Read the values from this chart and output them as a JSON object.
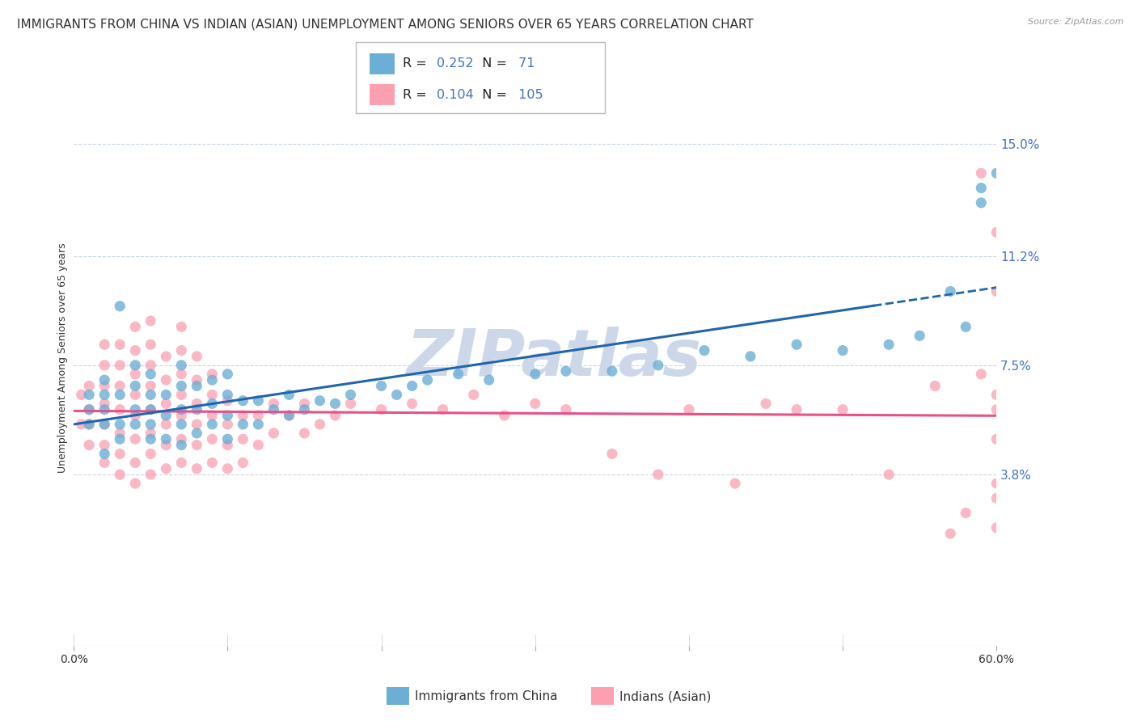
{
  "title": "IMMIGRANTS FROM CHINA VS INDIAN (ASIAN) UNEMPLOYMENT AMONG SENIORS OVER 65 YEARS CORRELATION CHART",
  "source": "Source: ZipAtlas.com",
  "ylabel": "Unemployment Among Seniors over 65 years",
  "xlim": [
    0.0,
    0.6
  ],
  "ylim": [
    -0.02,
    0.175
  ],
  "yticks": [
    0.038,
    0.075,
    0.112,
    0.15
  ],
  "ytick_labels": [
    "3.8%",
    "7.5%",
    "11.2%",
    "15.0%"
  ],
  "xticks": [
    0.0,
    0.6
  ],
  "xtick_labels": [
    "0.0%",
    "60.0%"
  ],
  "china_R": 0.252,
  "china_N": 71,
  "india_R": 0.104,
  "india_N": 105,
  "china_color": "#6baed6",
  "india_color": "#fc9fb0",
  "china_line_color": "#2166ac",
  "india_line_color": "#e8508a",
  "watermark": "ZIPatlas",
  "watermark_color": "#ccd8ea",
  "background_color": "#ffffff",
  "grid_color": "#c8d4e8",
  "legend_entry1": "Immigrants from China",
  "legend_entry2": "Indians (Asian)",
  "title_fontsize": 11,
  "axis_label_fontsize": 9,
  "tick_fontsize": 10,
  "china_scatter_x": [
    0.01,
    0.01,
    0.01,
    0.02,
    0.02,
    0.02,
    0.02,
    0.02,
    0.03,
    0.03,
    0.03,
    0.03,
    0.04,
    0.04,
    0.04,
    0.04,
    0.05,
    0.05,
    0.05,
    0.05,
    0.05,
    0.06,
    0.06,
    0.06,
    0.07,
    0.07,
    0.07,
    0.07,
    0.07,
    0.08,
    0.08,
    0.08,
    0.09,
    0.09,
    0.09,
    0.1,
    0.1,
    0.1,
    0.1,
    0.11,
    0.11,
    0.12,
    0.12,
    0.13,
    0.14,
    0.14,
    0.15,
    0.16,
    0.17,
    0.18,
    0.2,
    0.21,
    0.22,
    0.23,
    0.25,
    0.27,
    0.3,
    0.32,
    0.35,
    0.38,
    0.41,
    0.44,
    0.47,
    0.5,
    0.53,
    0.55,
    0.57,
    0.58,
    0.59,
    0.59,
    0.6
  ],
  "china_scatter_y": [
    0.055,
    0.06,
    0.065,
    0.045,
    0.055,
    0.06,
    0.065,
    0.07,
    0.05,
    0.055,
    0.065,
    0.095,
    0.055,
    0.06,
    0.068,
    0.075,
    0.05,
    0.055,
    0.06,
    0.065,
    0.072,
    0.05,
    0.058,
    0.065,
    0.048,
    0.055,
    0.06,
    0.068,
    0.075,
    0.052,
    0.06,
    0.068,
    0.055,
    0.062,
    0.07,
    0.05,
    0.058,
    0.065,
    0.072,
    0.055,
    0.063,
    0.055,
    0.063,
    0.06,
    0.058,
    0.065,
    0.06,
    0.063,
    0.062,
    0.065,
    0.068,
    0.065,
    0.068,
    0.07,
    0.072,
    0.07,
    0.072,
    0.073,
    0.073,
    0.075,
    0.08,
    0.078,
    0.082,
    0.08,
    0.082,
    0.085,
    0.1,
    0.088,
    0.13,
    0.135,
    0.14
  ],
  "india_scatter_x": [
    0.005,
    0.005,
    0.01,
    0.01,
    0.01,
    0.01,
    0.02,
    0.02,
    0.02,
    0.02,
    0.02,
    0.02,
    0.02,
    0.03,
    0.03,
    0.03,
    0.03,
    0.03,
    0.03,
    0.03,
    0.04,
    0.04,
    0.04,
    0.04,
    0.04,
    0.04,
    0.04,
    0.04,
    0.05,
    0.05,
    0.05,
    0.05,
    0.05,
    0.05,
    0.05,
    0.05,
    0.06,
    0.06,
    0.06,
    0.06,
    0.06,
    0.06,
    0.07,
    0.07,
    0.07,
    0.07,
    0.07,
    0.07,
    0.07,
    0.08,
    0.08,
    0.08,
    0.08,
    0.08,
    0.08,
    0.09,
    0.09,
    0.09,
    0.09,
    0.09,
    0.1,
    0.1,
    0.1,
    0.1,
    0.11,
    0.11,
    0.11,
    0.12,
    0.12,
    0.13,
    0.13,
    0.14,
    0.15,
    0.15,
    0.16,
    0.17,
    0.18,
    0.2,
    0.22,
    0.24,
    0.26,
    0.28,
    0.3,
    0.32,
    0.35,
    0.38,
    0.4,
    0.43,
    0.45,
    0.47,
    0.5,
    0.53,
    0.56,
    0.57,
    0.58,
    0.59,
    0.59,
    0.6,
    0.6,
    0.6,
    0.6,
    0.6,
    0.6,
    0.6,
    0.6
  ],
  "india_scatter_y": [
    0.055,
    0.065,
    0.048,
    0.055,
    0.06,
    0.068,
    0.042,
    0.048,
    0.055,
    0.062,
    0.068,
    0.075,
    0.082,
    0.038,
    0.045,
    0.052,
    0.06,
    0.068,
    0.075,
    0.082,
    0.035,
    0.042,
    0.05,
    0.058,
    0.065,
    0.072,
    0.08,
    0.088,
    0.038,
    0.045,
    0.052,
    0.06,
    0.068,
    0.075,
    0.082,
    0.09,
    0.04,
    0.048,
    0.055,
    0.062,
    0.07,
    0.078,
    0.042,
    0.05,
    0.058,
    0.065,
    0.072,
    0.08,
    0.088,
    0.04,
    0.048,
    0.055,
    0.062,
    0.07,
    0.078,
    0.042,
    0.05,
    0.058,
    0.065,
    0.072,
    0.04,
    0.048,
    0.055,
    0.063,
    0.042,
    0.05,
    0.058,
    0.048,
    0.058,
    0.052,
    0.062,
    0.058,
    0.052,
    0.062,
    0.055,
    0.058,
    0.062,
    0.06,
    0.062,
    0.06,
    0.065,
    0.058,
    0.062,
    0.06,
    0.045,
    0.038,
    0.06,
    0.035,
    0.062,
    0.06,
    0.06,
    0.038,
    0.068,
    0.018,
    0.025,
    0.072,
    0.14,
    0.03,
    0.05,
    0.035,
    0.065,
    0.02,
    0.06,
    0.1,
    0.12
  ]
}
